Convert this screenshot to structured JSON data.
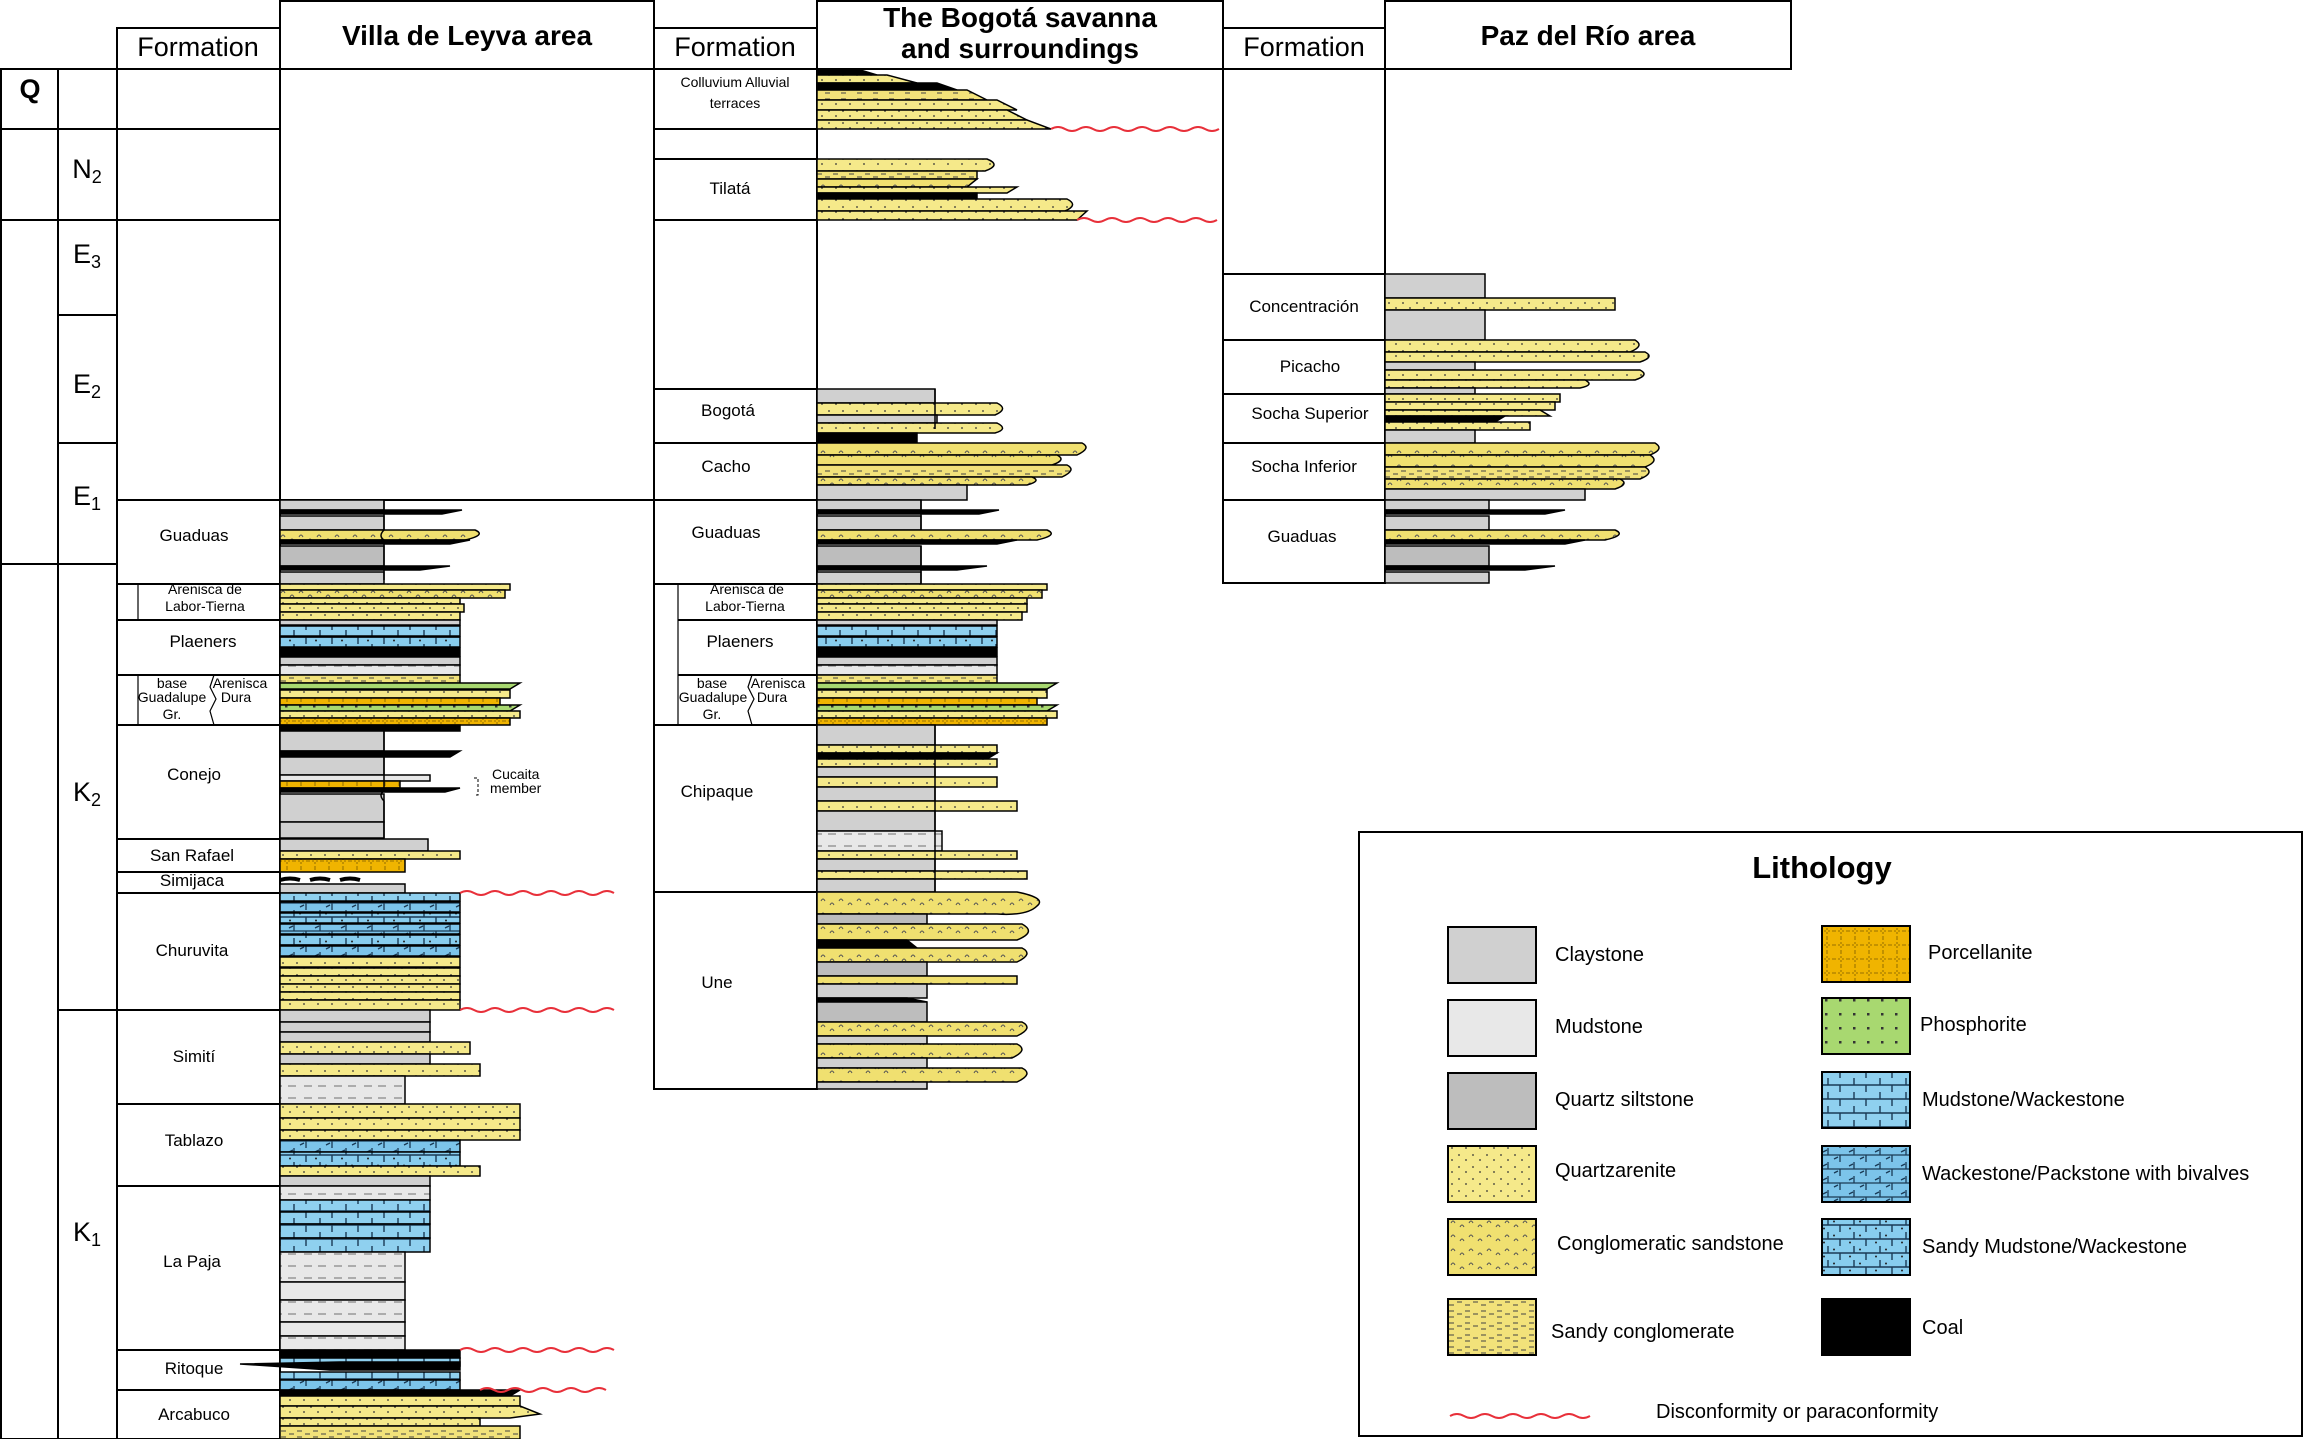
{
  "headers": {
    "formation": "Formation",
    "villa": "Villa de Leyva area",
    "bogota_1": "The Bogotá savanna",
    "bogota_2": "and surroundings",
    "paz": "Paz del Río area"
  },
  "ages": {
    "q": "Q",
    "n2": "N2",
    "e3": "E3",
    "e2": "E2",
    "e1": "E1",
    "k2": "K2",
    "k1": "K1"
  },
  "villa_formations": {
    "guaduas": "Guaduas",
    "arenisca_labor_1": "Arenisca de",
    "arenisca_labor_2": "Labor-Tierna",
    "plaeners": "Plaeners",
    "base_1": "base",
    "base_2": "Guadalupe",
    "base_3": "Gr.",
    "dura_1": "Arenisca",
    "dura_2": "Dura",
    "conejo": "Conejo",
    "cucaita_1": "Cucaita",
    "cucaita_2": "member",
    "san_rafael": "San Rafael",
    "simijaca": "Simijaca",
    "churuvita": "Churuvita",
    "simiti": "Simití",
    "tablazo": "Tablazo",
    "la_paja": "La Paja",
    "ritoque": "Ritoque",
    "arcabuco": "Arcabuco"
  },
  "bogota_formations": {
    "colluvium_1": "Colluvium Alluvial",
    "colluvium_2": "terraces",
    "tilata": "Tilatá",
    "bogota": "Bogotá",
    "cacho": "Cacho",
    "guaduas": "Guaduas",
    "arenisca_labor_1": "Arenisca de",
    "arenisca_labor_2": "Labor-Tierna",
    "plaeners": "Plaeners",
    "base_1": "base",
    "base_2": "Guadalupe",
    "base_3": "Gr.",
    "dura_1": "Arenisca",
    "dura_2": "Dura",
    "chipaque": "Chipaque",
    "une": "Une"
  },
  "paz_formations": {
    "concentracion": "Concentración",
    "picacho": "Picacho",
    "socha_superior": "Socha Superior",
    "socha_inferior": "Socha Inferior",
    "guaduas": "Guaduas"
  },
  "legend": {
    "title": "Lithology",
    "claystone": "Claystone",
    "mudstone": "Mudstone",
    "quartz_siltstone": "Quartz siltstone",
    "quartzarenite": "Quartzarenite",
    "conglomeratic_sandstone": "Conglomeratic  sandstone",
    "sandy_conglomerate": "Sandy  conglomerate",
    "porcellanite": "Porcellanite",
    "phosphorite": "Phosphorite",
    "mudstone_wackestone": "Mudstone/Wackestone",
    "wackestone_packstone": "Wackestone/Packstone with bivalves",
    "sandy_mudstone_wackestone": "Sandy Mudstone/Wackestone",
    "coal": "Coal",
    "disconformity": "Disconformity  or  paraconformity"
  },
  "colors": {
    "claystone": "#d0d0d0",
    "mudstone": "#e8e8e8",
    "quartz_siltstone": "#bdbdbd",
    "quartzarenite": "#f5e98a",
    "conglomeratic_sandstone": "#f0e070",
    "sandy_conglomerate": "#f2e27a",
    "porcellanite": "#f0b400",
    "phosphorite": "#a8d870",
    "mudstone_wackestone": "#8fd0ef",
    "wackestone_packstone": "#7cc4ea",
    "sandy_mudstone_wackestone": "#88cdee",
    "coal": "#000000",
    "disconformity": "#e8303a"
  }
}
